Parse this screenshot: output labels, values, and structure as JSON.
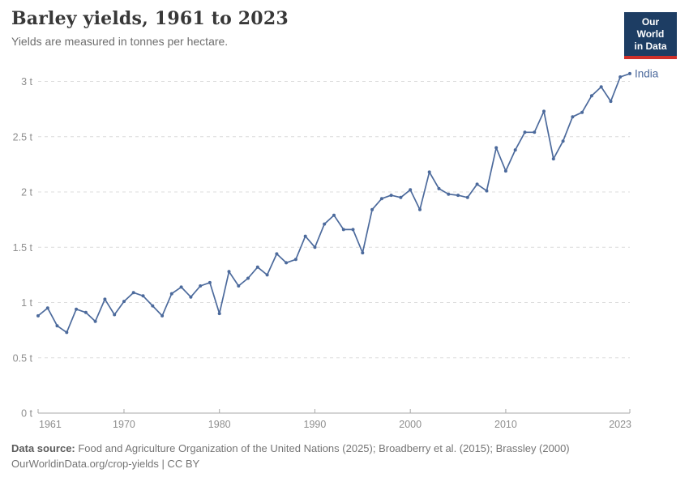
{
  "header": {
    "title": "Barley yields, 1961 to 2023",
    "subtitle": "Yields are measured in tonnes per hectare."
  },
  "logo": {
    "line1": "Our World",
    "line2": "in Data",
    "bg_color": "#1d3d63",
    "accent_color": "#cf302a"
  },
  "chart_data": {
    "type": "line",
    "title": "Barley yields, 1961 to 2023",
    "xlabel": "",
    "ylabel": "tonnes per hectare",
    "xlim": [
      1961,
      2023
    ],
    "ylim": [
      0,
      3
    ],
    "xticks": [
      1961,
      1970,
      1980,
      1990,
      2000,
      2010,
      2023
    ],
    "yticks": [
      0,
      0.5,
      1,
      1.5,
      2,
      2.5,
      3
    ],
    "ytick_labels": [
      "0 t",
      "0.5 t",
      "1 t",
      "1.5 t",
      "2 t",
      "2.5 t",
      "3 t"
    ],
    "grid": "horizontal-dashed",
    "legend_position": "end-of-line",
    "series": [
      {
        "name": "India",
        "color": "#4c6a9c",
        "x": [
          1961,
          1962,
          1963,
          1964,
          1965,
          1966,
          1967,
          1968,
          1969,
          1970,
          1971,
          1972,
          1973,
          1974,
          1975,
          1976,
          1977,
          1978,
          1979,
          1980,
          1981,
          1982,
          1983,
          1984,
          1985,
          1986,
          1987,
          1988,
          1989,
          1990,
          1991,
          1992,
          1993,
          1994,
          1995,
          1996,
          1997,
          1998,
          1999,
          2000,
          2001,
          2002,
          2003,
          2004,
          2005,
          2006,
          2007,
          2008,
          2009,
          2010,
          2011,
          2012,
          2013,
          2014,
          2015,
          2016,
          2017,
          2018,
          2019,
          2020,
          2021,
          2022,
          2023
        ],
        "values": [
          0.88,
          0.95,
          0.79,
          0.73,
          0.94,
          0.91,
          0.83,
          1.03,
          0.89,
          1.01,
          1.09,
          1.06,
          0.97,
          0.88,
          1.08,
          1.14,
          1.05,
          1.15,
          1.18,
          0.9,
          1.28,
          1.15,
          1.22,
          1.32,
          1.25,
          1.44,
          1.36,
          1.39,
          1.6,
          1.5,
          1.71,
          1.79,
          1.66,
          1.66,
          1.45,
          1.84,
          1.94,
          1.97,
          1.95,
          2.02,
          1.84,
          2.18,
          2.03,
          1.98,
          1.97,
          1.95,
          2.07,
          2.01,
          2.4,
          2.19,
          2.38,
          2.54,
          2.54,
          2.73,
          2.3,
          2.46,
          2.68,
          2.72,
          2.87,
          2.95,
          2.82,
          3.04,
          3.07
        ]
      }
    ]
  },
  "footer": {
    "source_label": "Data source:",
    "source_text": " Food and Agriculture Organization of the United Nations (2025); Broadberry et al. (2015); Brassley (2000)",
    "attribution": "OurWorldinData.org/crop-yields | CC BY"
  },
  "colors": {
    "line": "#4c6a9c",
    "grid": "#dcdcdc",
    "axis": "#a8a8a8",
    "tick_text": "#8e8e8e",
    "title_text": "#383838",
    "subtitle_text": "#6e6e6e"
  }
}
